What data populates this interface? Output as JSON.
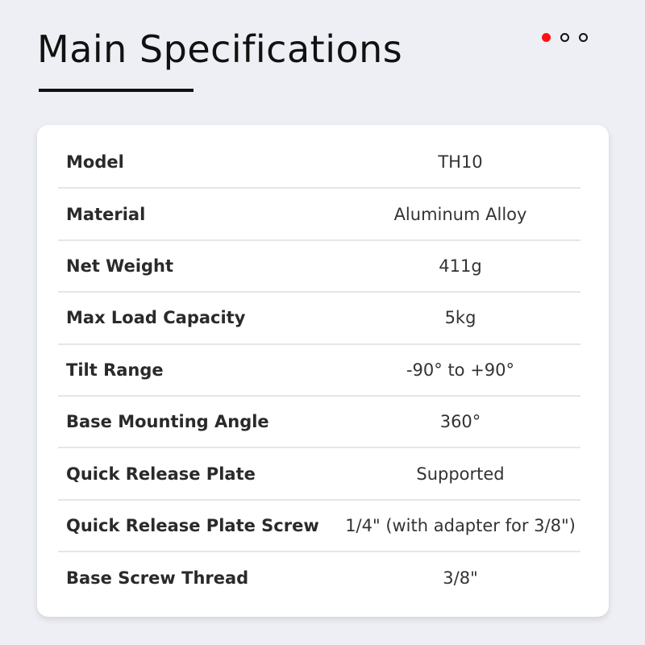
{
  "header": {
    "title": "Main Specifications"
  },
  "pagination": {
    "active_color": "#ff1010",
    "pages": 3,
    "active_index": 0
  },
  "specs": [
    {
      "label": "Model",
      "value": "TH10"
    },
    {
      "label": "Material",
      "value": "Aluminum Alloy"
    },
    {
      "label": "Net Weight",
      "value": "411g"
    },
    {
      "label": "Max Load Capacity",
      "value": "5kg"
    },
    {
      "label": "Tilt Range",
      "value": "-90° to +90°"
    },
    {
      "label": "Base Mounting Angle",
      "value": "360°"
    },
    {
      "label": "Quick Release Plate",
      "value": "Supported"
    },
    {
      "label": "Quick Release Plate Screw",
      "value": "1/4\" (with adapter for 3/8\")"
    },
    {
      "label": "Base Screw Thread",
      "value": "3/8\""
    }
  ]
}
